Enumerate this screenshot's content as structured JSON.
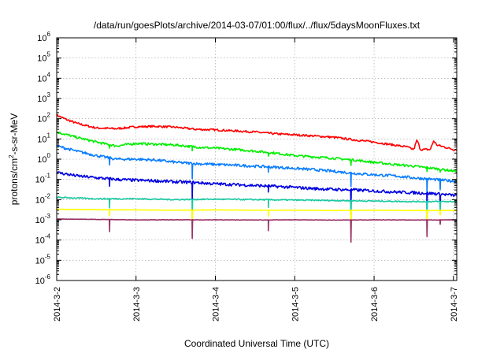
{
  "chart_data": {
    "type": "line",
    "title": "/data/run/goesPlots/archive/2014-03-07/01:00/flux/../flux/5daysMoonFluxes.txt",
    "xlabel": "Coordinated Universal Time (UTC)",
    "ylabel": {
      "prefix": "protons/cm",
      "superscript": "2",
      "suffix": "-s-sr-MeV"
    },
    "yscale": "log",
    "ylim": [
      1e-06,
      1000000.0
    ],
    "y_ticks": [
      {
        "value": 1e-06,
        "base": "10",
        "exp": "-6"
      },
      {
        "value": 1e-05,
        "base": "10",
        "exp": "-5"
      },
      {
        "value": 0.0001,
        "base": "10",
        "exp": "-4"
      },
      {
        "value": 0.001,
        "base": "10",
        "exp": "-3"
      },
      {
        "value": 0.01,
        "base": "10",
        "exp": "-2"
      },
      {
        "value": 0.1,
        "base": "10",
        "exp": "-1"
      },
      {
        "value": 1.0,
        "base": "10",
        "exp": "0"
      },
      {
        "value": 10.0,
        "base": "10",
        "exp": "1"
      },
      {
        "value": 100.0,
        "base": "10",
        "exp": "2"
      },
      {
        "value": 1000.0,
        "base": "10",
        "exp": "3"
      },
      {
        "value": 10000.0,
        "base": "10",
        "exp": "4"
      },
      {
        "value": 100000.0,
        "base": "10",
        "exp": "5"
      },
      {
        "value": 1000000.0,
        "base": "10",
        "exp": "6"
      }
    ],
    "xlim": [
      "2014-03-02 00:00",
      "2014-03-07 01:00"
    ],
    "x_ticks": [
      "2014-3-2",
      "2014-3-3",
      "2014-3-4",
      "2014-3-5",
      "2014-3-6",
      "2014-3-7"
    ],
    "grid": true,
    "series": [
      {
        "color": "#ff0000",
        "x": [
          "2014-03-02 00:00",
          "2014-03-02 03:00",
          "2014-03-02 06:00",
          "2014-03-02 09:00",
          "2014-03-02 12:00",
          "2014-03-02 18:00",
          "2014-03-03 00:00",
          "2014-03-03 06:00",
          "2014-03-03 12:00",
          "2014-03-03 18:00",
          "2014-03-04 00:00",
          "2014-03-04 06:00",
          "2014-03-04 12:00",
          "2014-03-04 18:00",
          "2014-03-05 00:00",
          "2014-03-05 06:00",
          "2014-03-05 12:00",
          "2014-03-05 18:00",
          "2014-03-06 00:00",
          "2014-03-06 06:00",
          "2014-03-06 10:00",
          "2014-03-06 12:00",
          "2014-03-06 13:00",
          "2014-03-06 14:00",
          "2014-03-06 17:00",
          "2014-03-06 18:00",
          "2014-03-06 19:00",
          "2014-03-07 00:00",
          "2014-03-07 01:00"
        ],
        "values": [
          150,
          90,
          60,
          45,
          35,
          32,
          40,
          42,
          38,
          30,
          28,
          25,
          22,
          18,
          16,
          14,
          12,
          9,
          7,
          5,
          4,
          3,
          9,
          3,
          3,
          8,
          5,
          3,
          3
        ]
      },
      {
        "color": "#00ee00",
        "x": [
          "2014-03-02 00:00",
          "2014-03-02 06:00",
          "2014-03-02 12:00",
          "2014-03-02 18:00",
          "2014-03-03 00:00",
          "2014-03-03 06:00",
          "2014-03-03 12:00",
          "2014-03-03 18:00",
          "2014-03-04 00:00",
          "2014-03-04 06:00",
          "2014-03-04 12:00",
          "2014-03-04 18:00",
          "2014-03-05 00:00",
          "2014-03-05 06:00",
          "2014-03-05 12:00",
          "2014-03-05 18:00",
          "2014-03-06 00:00",
          "2014-03-06 06:00",
          "2014-03-06 12:00",
          "2014-03-06 18:00",
          "2014-03-07 01:00"
        ],
        "values": [
          22,
          12,
          7,
          4.5,
          6,
          5.5,
          5,
          4,
          3.5,
          3,
          2.5,
          2,
          1.5,
          1.3,
          1.1,
          0.9,
          0.7,
          0.55,
          0.45,
          0.35,
          0.25
        ]
      },
      {
        "color": "#0a7dff",
        "x": [
          "2014-03-02 00:00",
          "2014-03-02 06:00",
          "2014-03-02 12:00",
          "2014-03-02 18:00",
          "2014-03-03 00:00",
          "2014-03-03 06:00",
          "2014-03-03 12:00",
          "2014-03-03 18:00",
          "2014-03-04 00:00",
          "2014-03-04 06:00",
          "2014-03-04 12:00",
          "2014-03-04 18:00",
          "2014-03-05 00:00",
          "2014-03-05 06:00",
          "2014-03-05 12:00",
          "2014-03-05 18:00",
          "2014-03-06 00:00",
          "2014-03-06 06:00",
          "2014-03-06 12:00",
          "2014-03-06 18:00",
          "2014-03-07 01:00"
        ],
        "values": [
          4.5,
          2.5,
          1.5,
          1,
          1,
          0.9,
          0.7,
          0.6,
          0.55,
          0.5,
          0.45,
          0.4,
          0.35,
          0.3,
          0.25,
          0.2,
          0.17,
          0.15,
          0.12,
          0.1,
          0.08
        ]
      },
      {
        "color": "#0000e0",
        "x": [
          "2014-03-02 00:00",
          "2014-03-02 06:00",
          "2014-03-02 12:00",
          "2014-03-02 18:00",
          "2014-03-03 00:00",
          "2014-03-03 06:00",
          "2014-03-03 12:00",
          "2014-03-03 18:00",
          "2014-03-04 00:00",
          "2014-03-04 06:00",
          "2014-03-04 12:00",
          "2014-03-04 18:00",
          "2014-03-05 00:00",
          "2014-03-05 06:00",
          "2014-03-05 12:00",
          "2014-03-05 18:00",
          "2014-03-06 00:00",
          "2014-03-06 06:00",
          "2014-03-06 12:00",
          "2014-03-06 18:00",
          "2014-03-07 01:00"
        ],
        "values": [
          0.22,
          0.15,
          0.12,
          0.1,
          0.09,
          0.085,
          0.075,
          0.07,
          0.06,
          0.055,
          0.05,
          0.045,
          0.04,
          0.035,
          0.032,
          0.03,
          0.027,
          0.024,
          0.022,
          0.02,
          0.016
        ]
      },
      {
        "color": "#18c8a0",
        "x": [
          "2014-03-02 00:00",
          "2014-03-02 12:00",
          "2014-03-03 00:00",
          "2014-03-03 12:00",
          "2014-03-04 00:00",
          "2014-03-04 12:00",
          "2014-03-05 00:00",
          "2014-03-05 12:00",
          "2014-03-06 00:00",
          "2014-03-06 12:00",
          "2014-03-07 01:00"
        ],
        "values": [
          0.013,
          0.011,
          0.011,
          0.01,
          0.0105,
          0.01,
          0.0095,
          0.009,
          0.0085,
          0.008,
          0.008
        ]
      },
      {
        "color": "#ffff00",
        "x": [
          "2014-03-02 00:00",
          "2014-03-02 12:00",
          "2014-03-03 00:00",
          "2014-03-03 12:00",
          "2014-03-04 00:00",
          "2014-03-04 12:00",
          "2014-03-05 00:00",
          "2014-03-05 12:00",
          "2014-03-06 00:00",
          "2014-03-06 12:00",
          "2014-03-07 01:00"
        ],
        "values": [
          0.0033,
          0.0032,
          0.0031,
          0.003,
          0.0031,
          0.003,
          0.003,
          0.0029,
          0.003,
          0.0029,
          0.0029
        ]
      },
      {
        "color": "#993366",
        "x": [
          "2014-03-02 00:00",
          "2014-03-02 12:00",
          "2014-03-03 00:00",
          "2014-03-03 12:00",
          "2014-03-04 00:00",
          "2014-03-04 12:00",
          "2014-03-05 00:00",
          "2014-03-05 12:00",
          "2014-03-06 00:00",
          "2014-03-06 12:00",
          "2014-03-07 01:00"
        ],
        "values": [
          0.0011,
          0.00105,
          0.001,
          0.001,
          0.001,
          0.00098,
          0.001,
          0.00097,
          0.001,
          0.00098,
          0.001
        ]
      }
    ],
    "dips": [
      {
        "time": "2014-03-02 16:00",
        "factors": [
          1,
          0.7,
          0.45,
          0.4,
          0.35,
          0.5,
          0.25
        ]
      },
      {
        "time": "2014-03-03 17:00",
        "factors": [
          1,
          0.6,
          0.2,
          0.15,
          0.12,
          0.15,
          0.12
        ]
      },
      {
        "time": "2014-03-04 16:00",
        "factors": [
          1,
          0.7,
          0.5,
          0.45,
          0.4,
          0.5,
          0.3
        ]
      },
      {
        "time": "2014-03-05 17:00",
        "factors": [
          1,
          0.6,
          0.2,
          0.12,
          0.1,
          0.12,
          0.08
        ]
      },
      {
        "time": "2014-03-06 16:00",
        "factors": [
          1,
          0.6,
          0.2,
          0.15,
          0.12,
          0.15,
          0.15
        ]
      },
      {
        "time": "2014-03-06 20:00",
        "factors": [
          1,
          0.8,
          0.3,
          0.35,
          0.35,
          0.6,
          0.6
        ]
      }
    ]
  }
}
